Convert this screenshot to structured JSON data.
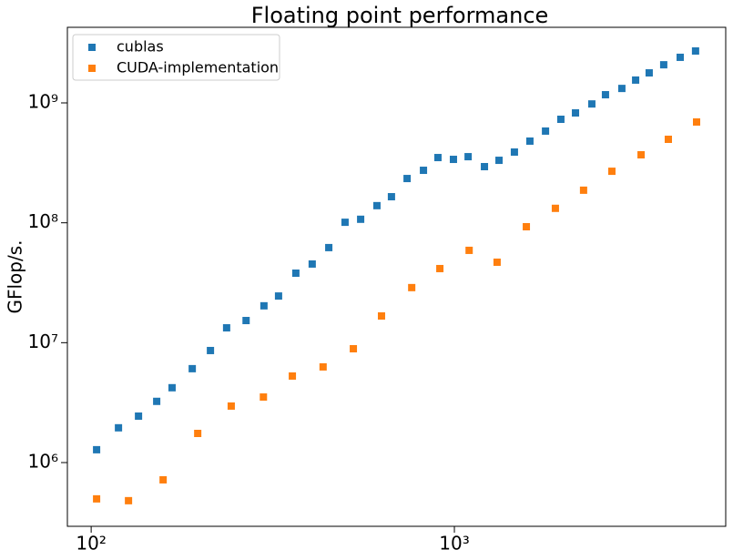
{
  "chart_data": {
    "type": "scatter",
    "title": "Floating point performance",
    "y_label": "GFlop/s.",
    "xscale": "log",
    "yscale": "log",
    "legend": "upper left",
    "marker": "square",
    "xlim": [
      86,
      5585
    ],
    "ylim": [
      294000,
      4270000000
    ],
    "xticks": [
      {
        "value": 100,
        "label": "10²"
      },
      {
        "value": 1000,
        "label": "10³"
      }
    ],
    "yticks": [
      {
        "value": 1000000,
        "label": "10⁶"
      },
      {
        "value": 10000000,
        "label": "10⁷"
      },
      {
        "value": 100000000,
        "label": "10⁸"
      },
      {
        "value": 1000000000,
        "label": "10⁹"
      }
    ],
    "series": [
      {
        "name": "cublas",
        "color": "#1f77b4",
        "x": [
          103.5,
          118.9,
          135,
          151.5,
          167,
          189.8,
          213,
          236,
          267,
          299,
          328,
          366,
          406,
          451,
          500,
          552,
          612,
          671,
          741,
          822,
          901,
          994,
          1091,
          1210,
          1327,
          1463,
          1614,
          1782,
          1964,
          2155,
          2390,
          2606,
          2891,
          3155,
          3438,
          3770,
          4185,
          4613
        ],
        "values": [
          1280000,
          1950000,
          2440000,
          3240000,
          4210000,
          6070000,
          8600000,
          13300000,
          15300000,
          20300000,
          24500000,
          38000000,
          45300000,
          62100000,
          101000000,
          107000000,
          139000000,
          165000000,
          234000000,
          274000000,
          350000000,
          338000000,
          356000000,
          294000000,
          332000000,
          389000000,
          480000000,
          582000000,
          730000000,
          825000000,
          980000000,
          1170000000,
          1320000000,
          1550000000,
          1780000000,
          2080000000,
          2400000000,
          2710000000
        ]
      },
      {
        "name": "CUDA-implementation",
        "color": "#ff7f0e",
        "x": [
          103.5,
          126.7,
          157.8,
          196.5,
          243,
          298,
          358,
          435,
          527,
          630,
          763,
          912,
          1098,
          1311,
          1578,
          1897,
          2268,
          2714,
          3266,
          3882,
          4643
        ],
        "values": [
          498000,
          481000,
          718000,
          1750000,
          2960000,
          3520000,
          5270000,
          6280000,
          8900000,
          16700000,
          28800000,
          41500000,
          58900000,
          46900000,
          92700000,
          132000000,
          187000000,
          269000000,
          369000000,
          497000000,
          693000000
        ]
      }
    ]
  }
}
